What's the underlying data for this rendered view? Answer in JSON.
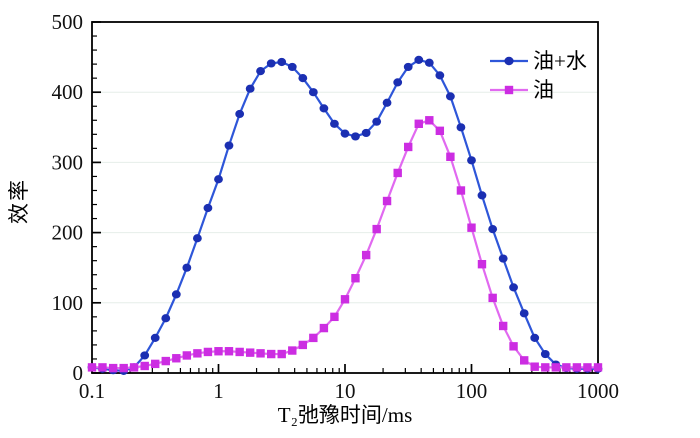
{
  "figure": {
    "background_color": "#ffffff",
    "frame_color": "#000000",
    "gridline_color": "#e6eee9",
    "tick_label_color": "#111111"
  },
  "chart_data": {
    "type": "line",
    "title": "",
    "xlabel": "T₂弛豫时间/ms",
    "ylabel": "效率",
    "x_scale": "log",
    "x_range": [
      0.1,
      1000
    ],
    "y_range": [
      0,
      500
    ],
    "x_tick_labels": [
      "0.1",
      "1",
      "10",
      "100",
      "1000"
    ],
    "x_major_ticks": [
      0.1,
      1,
      10,
      100,
      1000
    ],
    "y_major_ticks": [
      0,
      100,
      200,
      300,
      400,
      500
    ],
    "y_minor_step": 20,
    "grid": "horizontal major gridlines, very light, at 100-400",
    "legend_position": "inside top-right, no border",
    "x": [
      0.1,
      0.121,
      0.147,
      0.178,
      0.215,
      0.261,
      0.316,
      0.383,
      0.464,
      0.562,
      0.681,
      0.825,
      1,
      1.21,
      1.47,
      1.78,
      2.15,
      2.61,
      3.16,
      3.83,
      4.64,
      5.62,
      6.81,
      8.25,
      10,
      12.1,
      14.7,
      17.8,
      21.5,
      26.1,
      31.6,
      38.3,
      46.4,
      56.2,
      68.1,
      82.5,
      100,
      121,
      147,
      178,
      215,
      261,
      316,
      383,
      464,
      562,
      681,
      825,
      1000
    ],
    "series": [
      {
        "name": "油+水",
        "marker": "circle",
        "line_color": "#2e56d9",
        "marker_color": "#1b2fb2",
        "values": [
          8,
          6,
          4,
          3,
          8,
          25,
          50,
          78,
          112,
          150,
          192,
          235,
          276,
          324,
          369,
          405,
          430,
          441,
          443,
          436,
          420,
          400,
          377,
          355,
          341,
          337,
          342,
          358,
          385,
          414,
          436,
          446,
          442,
          424,
          394,
          350,
          303,
          253,
          205,
          163,
          122,
          85,
          50,
          27,
          12,
          7,
          6,
          6,
          6
        ]
      },
      {
        "name": "油",
        "marker": "square",
        "line_color": "#e169f0",
        "marker_color": "#cc2de2",
        "values": [
          8,
          8,
          7,
          7,
          8,
          10,
          13,
          17,
          21,
          25,
          28,
          30,
          31,
          31,
          30,
          29,
          28,
          27,
          27,
          32,
          40,
          50,
          64,
          80,
          105,
          135,
          168,
          205,
          245,
          285,
          322,
          355,
          360,
          345,
          308,
          260,
          207,
          155,
          107,
          67,
          38,
          18,
          9,
          8,
          8,
          8,
          8,
          8,
          8
        ]
      }
    ]
  }
}
